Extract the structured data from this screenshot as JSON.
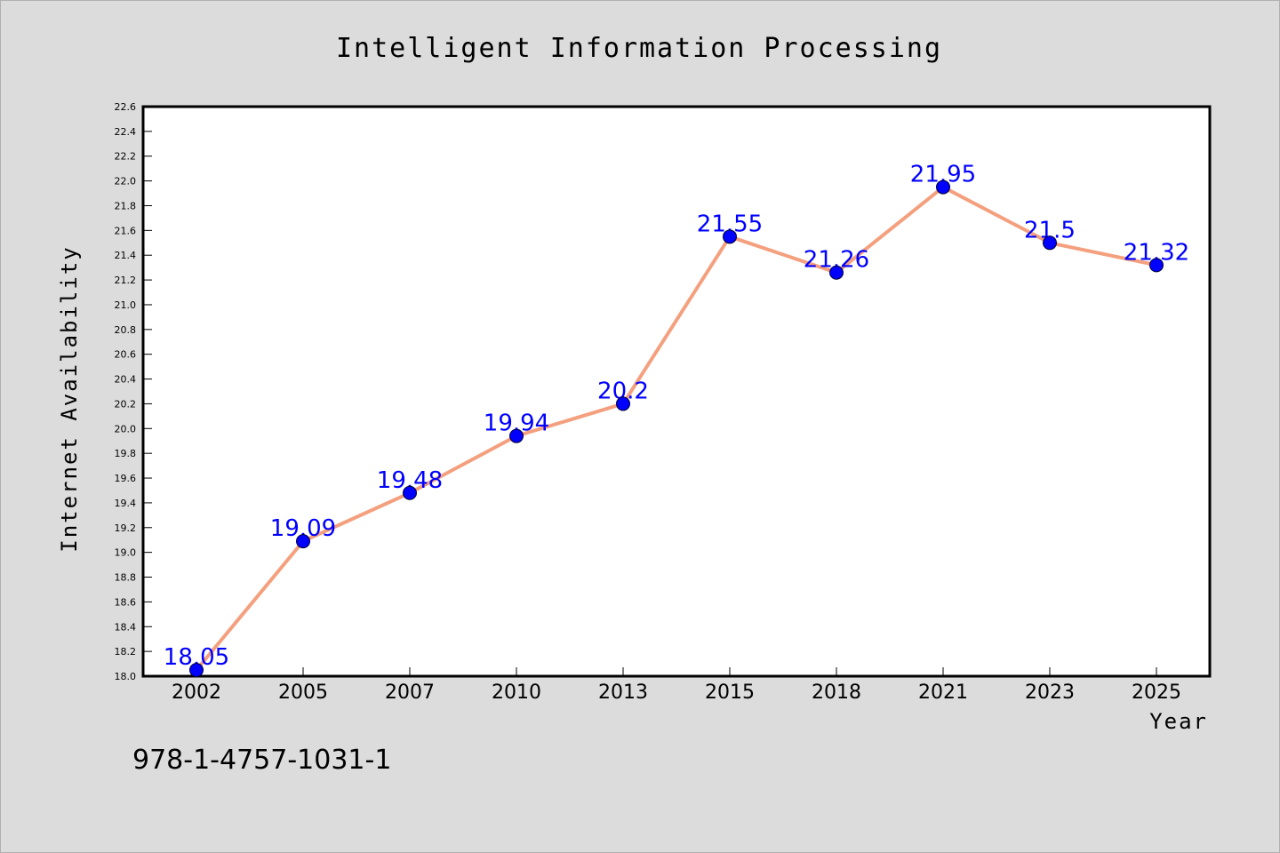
{
  "chart_data": {
    "type": "line",
    "title": "Intelligent Information Processing",
    "xlabel": "Year",
    "ylabel": "Internet Availability",
    "categories": [
      "2002",
      "2005",
      "2007",
      "2010",
      "2013",
      "2015",
      "2018",
      "2021",
      "2023",
      "2025"
    ],
    "series": [
      {
        "values": [
          18.05,
          19.09,
          19.48,
          19.94,
          20.2,
          21.55,
          21.26,
          21.95,
          21.5,
          21.32
        ],
        "labels": [
          "18.05",
          "19.09",
          "19.48",
          "19.94",
          "20.2",
          "21.55",
          "21.26",
          "21.95",
          "21.5",
          "21.32"
        ],
        "line_color": "#f4a07e",
        "marker_color": "#0000ff"
      }
    ],
    "ylim": [
      18.0,
      22.6
    ],
    "yticks": [
      "18.0",
      "18.2",
      "18.4",
      "18.6",
      "18.8",
      "19.0",
      "19.2",
      "19.4",
      "19.6",
      "19.8",
      "20.0",
      "20.2",
      "20.4",
      "20.6",
      "20.8",
      "21.0",
      "21.2",
      "21.4",
      "21.6",
      "21.8",
      "22.0",
      "22.2",
      "22.4",
      "22.6"
    ],
    "grid": false,
    "legend": "none"
  },
  "footer": {
    "isbn": "978-1-4757-1031-1"
  }
}
